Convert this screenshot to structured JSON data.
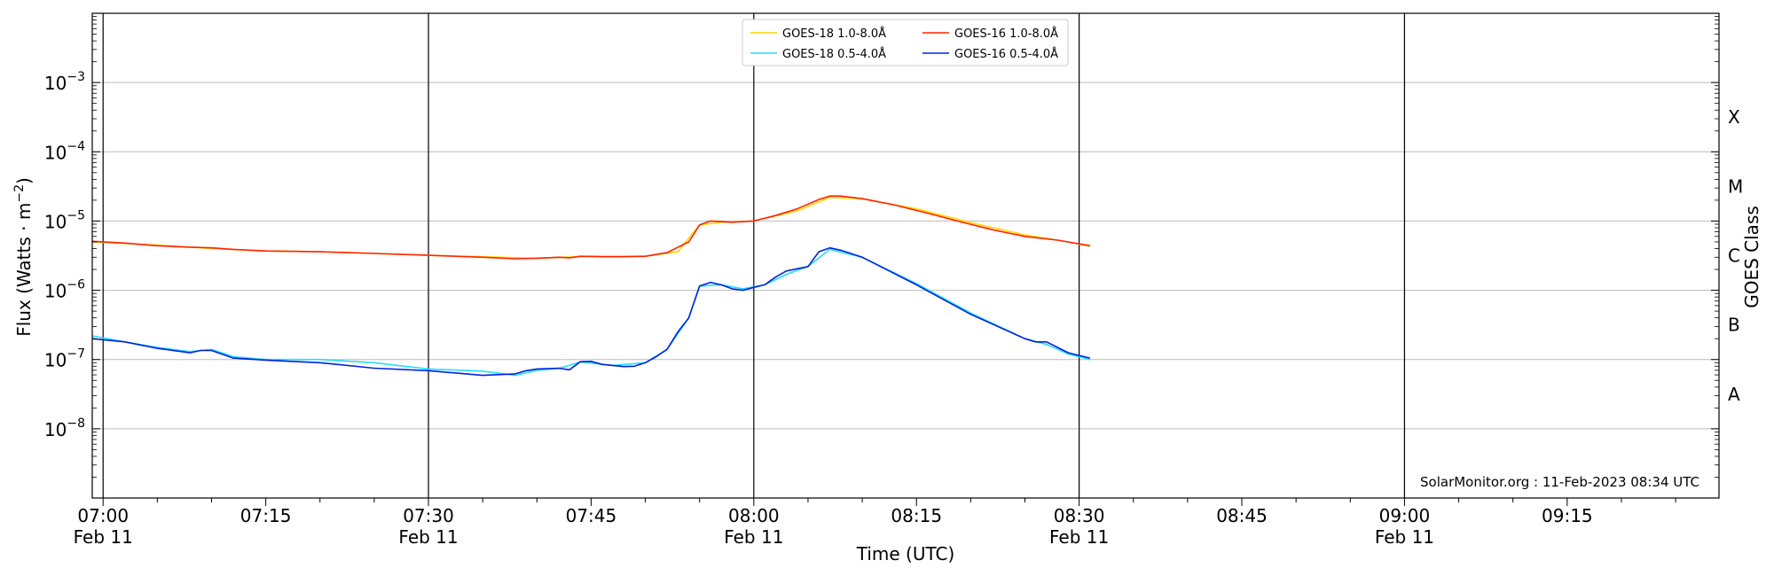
{
  "chart_data": {
    "type": "line",
    "title": "",
    "xlabel": "Time (UTC)",
    "ylabel_main": "Flux (Watts · m",
    "ylabel_exp": "−2",
    "ylabel_close": ")",
    "right_ylabel": "GOES Class",
    "y_scale": "log",
    "ylim": [
      1e-09,
      0.01
    ],
    "xlim": [
      "06:59",
      "09:29"
    ],
    "grid": "horizontal at decades, vertical at half hours",
    "legend_position": "top-center",
    "credit": "SolarMonitor.org : 11-Feb-2023 08:34 UTC",
    "x_tick_labels": [
      {
        "time": "07:00",
        "label": "07:00",
        "date": "Feb 11"
      },
      {
        "time": "07:15",
        "label": "07:15",
        "date": ""
      },
      {
        "time": "07:30",
        "label": "07:30",
        "date": "Feb 11"
      },
      {
        "time": "07:45",
        "label": "07:45",
        "date": ""
      },
      {
        "time": "08:00",
        "label": "08:00",
        "date": "Feb 11"
      },
      {
        "time": "08:15",
        "label": "08:15",
        "date": ""
      },
      {
        "time": "08:30",
        "label": "08:30",
        "date": "Feb 11"
      },
      {
        "time": "08:45",
        "label": "08:45",
        "date": ""
      },
      {
        "time": "09:00",
        "label": "09:00",
        "date": "Feb 11"
      },
      {
        "time": "09:15",
        "label": "09:15",
        "date": ""
      }
    ],
    "y_tick_labels": [
      {
        "value": 0.001,
        "base": "10",
        "exp": "−3"
      },
      {
        "value": 0.0001,
        "base": "10",
        "exp": "−4"
      },
      {
        "value": 1e-05,
        "base": "10",
        "exp": "−5"
      },
      {
        "value": 1e-06,
        "base": "10",
        "exp": "−6"
      },
      {
        "value": 1e-07,
        "base": "10",
        "exp": "−7"
      },
      {
        "value": 1e-08,
        "base": "10",
        "exp": "−8"
      }
    ],
    "goes_classes": [
      {
        "label": "X",
        "value": 0.000316
      },
      {
        "label": "M",
        "value": 3.16e-05
      },
      {
        "label": "C",
        "value": 3.16e-06
      },
      {
        "label": "B",
        "value": 3.16e-07
      },
      {
        "label": "A",
        "value": 3.16e-08
      }
    ],
    "series": [
      {
        "name": "GOES-18 1.0-8.0Å",
        "color": "#ffd700",
        "x": [
          "06:59",
          "07:05",
          "07:10",
          "07:15",
          "07:20",
          "07:25",
          "07:30",
          "07:35",
          "07:40",
          "07:45",
          "07:50",
          "07:53",
          "07:55",
          "07:57",
          "08:00",
          "08:04",
          "08:07",
          "08:10",
          "08:15",
          "08:20",
          "08:25",
          "08:29",
          "08:31"
        ],
        "y": [
          5e-06,
          4.5e-06,
          4e-06,
          3.7e-06,
          3.6e-06,
          3.4e-06,
          3.2e-06,
          3.05e-06,
          2.9e-06,
          3.1e-06,
          3.1e-06,
          3.6e-06,
          8.8e-06,
          9.6e-06,
          1e-05,
          1.4e-05,
          2.2e-05,
          2.1e-05,
          1.5e-05,
          9.5e-06,
          6.3e-06,
          5e-06,
          4.3e-06
        ]
      },
      {
        "name": "GOES-18 0.5-4.0Å",
        "color": "#22ddff",
        "x": [
          "06:59",
          "07:02",
          "07:05",
          "07:08",
          "07:10",
          "07:12",
          "07:15",
          "07:20",
          "07:25",
          "07:30",
          "07:35",
          "07:38",
          "07:40",
          "07:42",
          "07:44",
          "07:47",
          "07:50",
          "07:52",
          "07:54",
          "07:55",
          "07:57",
          "07:59",
          "08:01",
          "08:03",
          "08:05",
          "08:07",
          "08:10",
          "08:15",
          "08:20",
          "08:25",
          "08:27",
          "08:29",
          "08:31"
        ],
        "y": [
          2.2e-07,
          1.8e-07,
          1.5e-07,
          1.3e-07,
          1.4e-07,
          1.1e-07,
          1e-07,
          1e-07,
          9e-08,
          7.3e-08,
          6.8e-08,
          5.9e-08,
          7e-08,
          7.4e-08,
          9.2e-08,
          8.2e-08,
          9e-08,
          1.4e-07,
          4e-07,
          1.15e-06,
          1.2e-06,
          1.05e-06,
          1.2e-06,
          1.7e-06,
          2.2e-06,
          3.9e-06,
          3e-06,
          1.25e-06,
          4.7e-07,
          2e-07,
          1.65e-07,
          1.2e-07,
          1e-07
        ]
      },
      {
        "name": "GOES-16 1.0-8.0Å",
        "color": "#ff2200",
        "x": [
          "06:59",
          "07:02",
          "07:05",
          "07:08",
          "07:10",
          "07:12",
          "07:15",
          "07:20",
          "07:25",
          "07:30",
          "07:35",
          "07:38",
          "07:40",
          "07:42",
          "07:43",
          "07:44",
          "07:46",
          "07:48",
          "07:50",
          "07:52",
          "07:54",
          "07:55",
          "07:56",
          "07:58",
          "08:00",
          "08:02",
          "08:04",
          "08:06",
          "08:07",
          "08:08",
          "08:10",
          "08:13",
          "08:16",
          "08:19",
          "08:22",
          "08:25",
          "08:28",
          "08:31"
        ],
        "y": [
          5.1e-06,
          4.8e-06,
          4.4e-06,
          4.2e-06,
          4.1e-06,
          3.9e-06,
          3.7e-06,
          3.6e-06,
          3.4e-06,
          3.2e-06,
          3e-06,
          2.85e-06,
          2.9e-06,
          3e-06,
          2.95e-06,
          3.1e-06,
          3.05e-06,
          3.05e-06,
          3.1e-06,
          3.5e-06,
          5e-06,
          8.8e-06,
          1e-05,
          9.6e-06,
          1e-05,
          1.2e-05,
          1.5e-05,
          2.05e-05,
          2.3e-05,
          2.3e-05,
          2.1e-05,
          1.7e-05,
          1.3e-05,
          9.8e-06,
          7.5e-06,
          6e-06,
          5.3e-06,
          4.4e-06
        ]
      },
      {
        "name": "GOES-16 0.5-4.0Å",
        "color": "#0022dd",
        "x": [
          "06:59",
          "07:02",
          "07:05",
          "07:08",
          "07:09",
          "07:10",
          "07:12",
          "07:15",
          "07:20",
          "07:25",
          "07:30",
          "07:35",
          "07:38",
          "07:39",
          "07:40",
          "07:42",
          "07:43",
          "07:44",
          "07:45",
          "07:46",
          "07:48",
          "07:49",
          "07:50",
          "07:51",
          "07:52",
          "07:53",
          "07:54",
          "07:55",
          "07:56",
          "07:57",
          "07:58",
          "07:59",
          "08:00",
          "08:01",
          "08:02",
          "08:03",
          "08:05",
          "08:06",
          "08:07",
          "08:08",
          "08:10",
          "08:15",
          "08:20",
          "08:25",
          "08:26",
          "08:27",
          "08:28",
          "08:29",
          "08:31"
        ],
        "y": [
          2e-07,
          1.8e-07,
          1.45e-07,
          1.25e-07,
          1.35e-07,
          1.35e-07,
          1.05e-07,
          9.8e-08,
          9e-08,
          7.5e-08,
          6.9e-08,
          5.9e-08,
          6.2e-08,
          6.9e-08,
          7.3e-08,
          7.5e-08,
          7.1e-08,
          9.3e-08,
          9.4e-08,
          8.5e-08,
          7.9e-08,
          8e-08,
          9e-08,
          1.1e-07,
          1.4e-07,
          2.5e-07,
          4e-07,
          1.15e-06,
          1.3e-06,
          1.2e-06,
          1.05e-06,
          1e-06,
          1.1e-06,
          1.2e-06,
          1.55e-06,
          1.9e-06,
          2.2e-06,
          3.6e-06,
          4.1e-06,
          3.8e-06,
          3e-06,
          1.2e-06,
          4.5e-07,
          2e-07,
          1.8e-07,
          1.8e-07,
          1.5e-07,
          1.25e-07,
          1.05e-07
        ]
      }
    ]
  }
}
